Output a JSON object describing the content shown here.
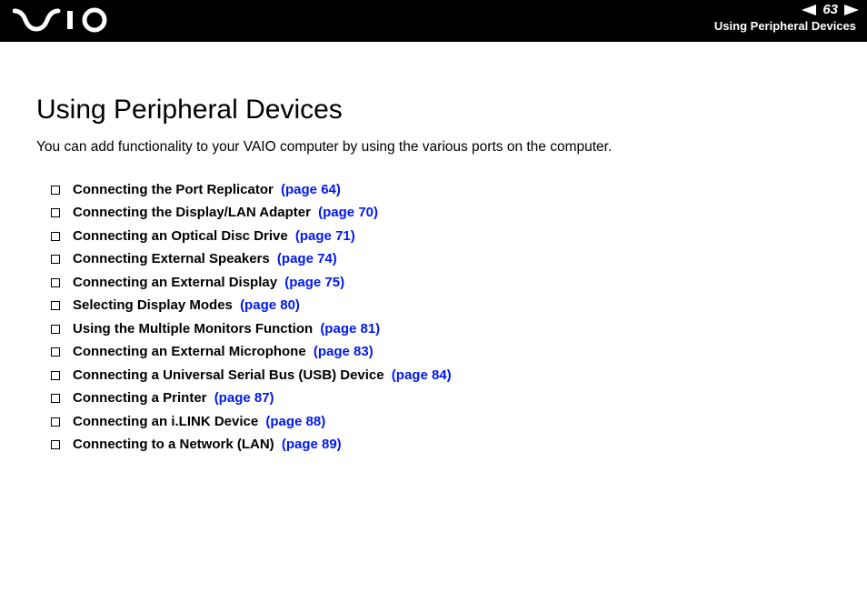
{
  "header": {
    "logo_text": "VAIO",
    "page_number": "63",
    "section": "Using Peripheral Devices",
    "colors": {
      "bg": "#000000",
      "fg": "#ffffff"
    }
  },
  "content": {
    "title": "Using Peripheral Devices",
    "intro": "You can add functionality to your VAIO computer by using the various ports on the computer.",
    "link_color": "#0018ee",
    "items": [
      {
        "label": "Connecting the Port Replicator",
        "page_ref": "(page 64)"
      },
      {
        "label": "Connecting the Display/LAN Adapter",
        "page_ref": "(page 70)"
      },
      {
        "label": "Connecting an Optical Disc Drive",
        "page_ref": "(page 71)"
      },
      {
        "label": "Connecting External Speakers",
        "page_ref": "(page 74)"
      },
      {
        "label": "Connecting an External Display",
        "page_ref": "(page 75)"
      },
      {
        "label": "Selecting Display Modes",
        "page_ref": "(page 80)"
      },
      {
        "label": "Using the Multiple Monitors Function",
        "page_ref": "(page 81)"
      },
      {
        "label": "Connecting an External Microphone",
        "page_ref": "(page 83)"
      },
      {
        "label": "Connecting a Universal Serial Bus (USB) Device",
        "page_ref": "(page 84)"
      },
      {
        "label": "Connecting a Printer",
        "page_ref": "(page 87)"
      },
      {
        "label": "Connecting an i.LINK Device",
        "page_ref": "(page 88)"
      },
      {
        "label": "Connecting to a Network (LAN)",
        "page_ref": "(page 89)"
      }
    ]
  }
}
